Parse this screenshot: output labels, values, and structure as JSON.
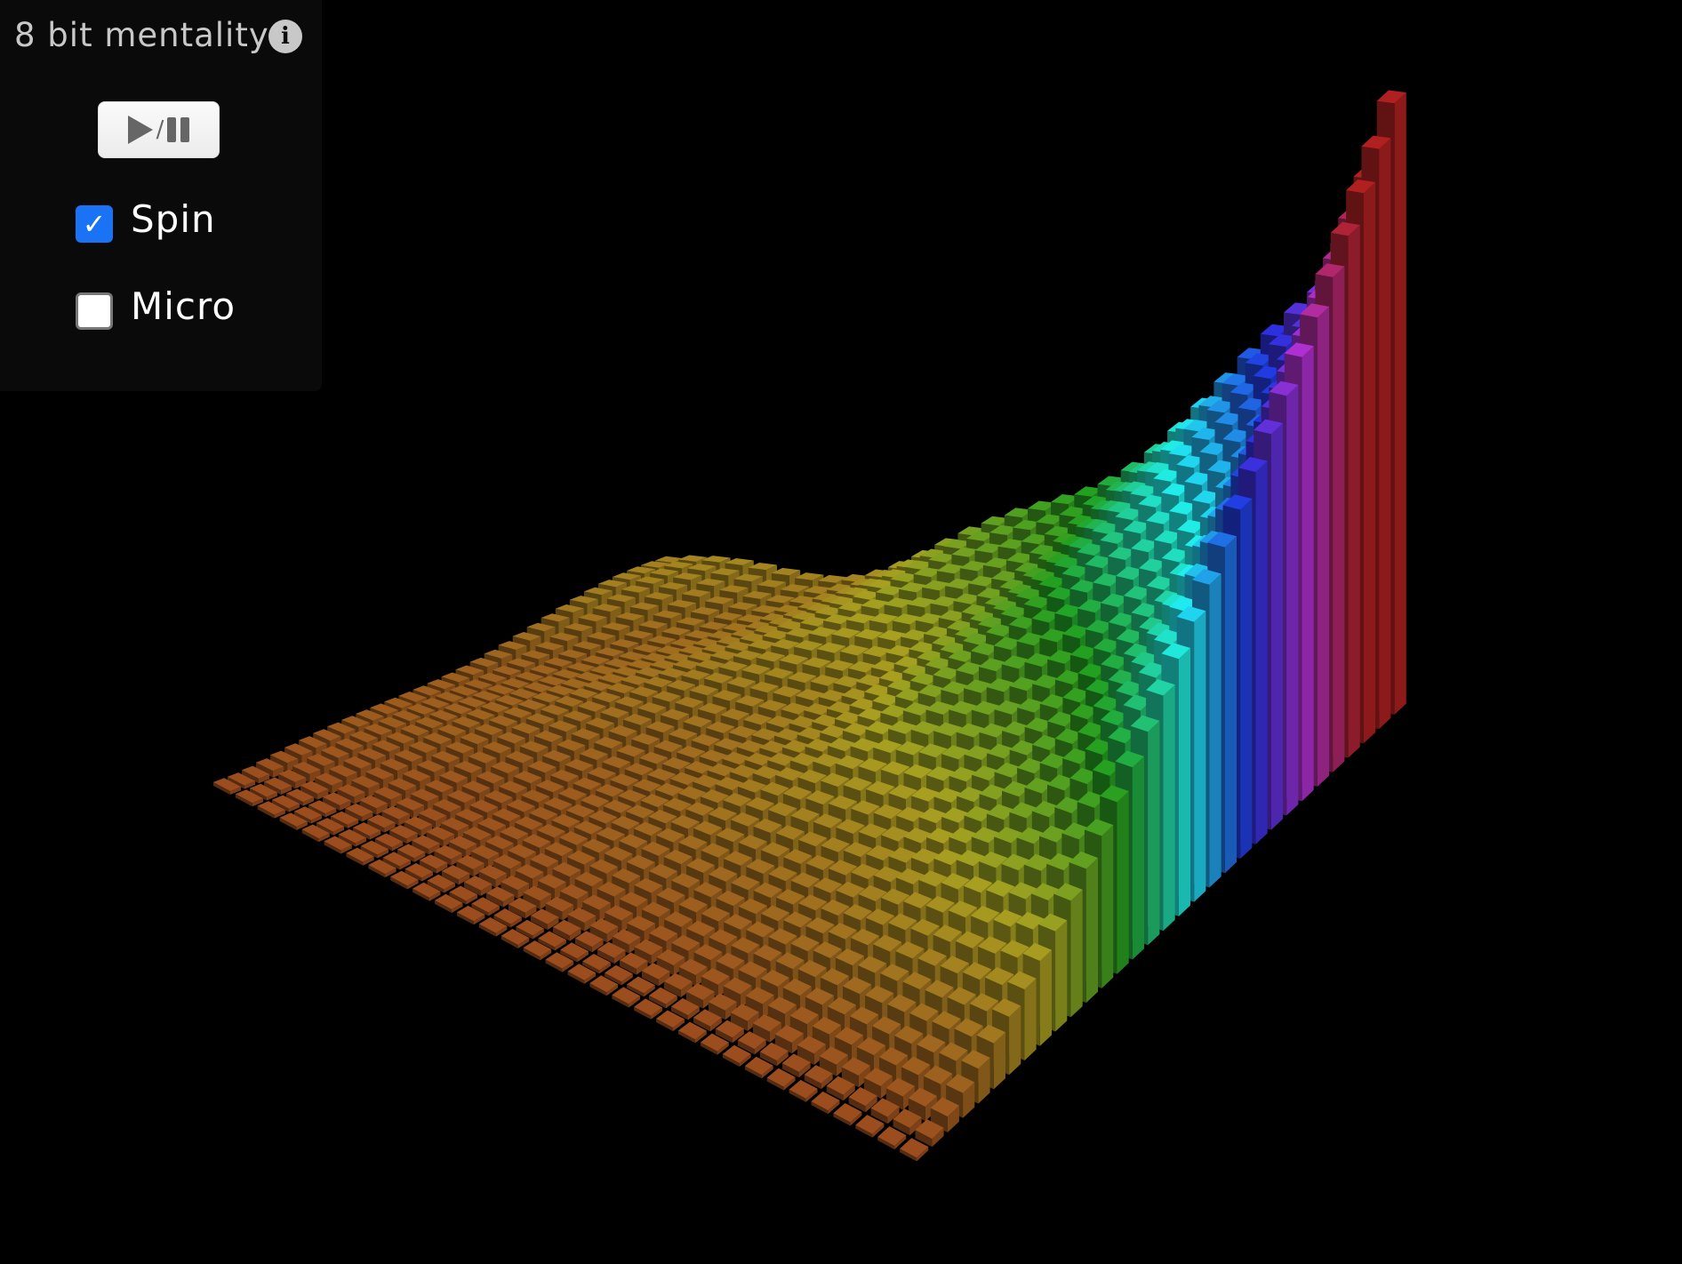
{
  "panel": {
    "title": "8 bit mentality",
    "info_icon": "info-icon",
    "play_pause_icon": "play-pause-icon",
    "play_pause_slash": "/",
    "spin": {
      "label": "Spin",
      "checked": true
    },
    "micro": {
      "label": "Micro",
      "checked": false
    }
  },
  "colors": {
    "background": "#000000",
    "panel": "#0a0a0a",
    "checkbox_accent": "#1a73f5",
    "bar_gradient": [
      "#9a4a1e",
      "#a8a020",
      "#22a020",
      "#20f0f0",
      "#2030e0",
      "#b030d0",
      "#b02020"
    ]
  }
}
